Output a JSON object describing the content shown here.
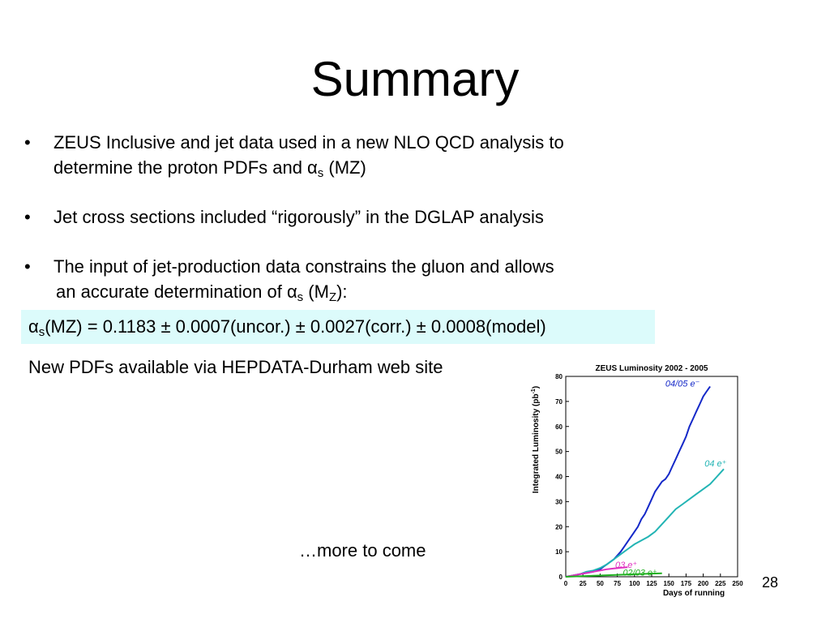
{
  "slide": {
    "title": "Summary",
    "page_number": "28",
    "bullet_glyph": "•",
    "bullets": [
      {
        "line1": "ZEUS Inclusive and jet data used in a new NLO QCD analysis to",
        "line2_prefix": "determine the proton PDFs and α",
        "line2_sub": "s",
        "line2_suffix": " (MZ)"
      },
      {
        "line1": "Jet cross sections included “rigorously” in the DGLAP analysis"
      },
      {
        "line1": "The input of jet-production data constrains the gluon and allows",
        "line2_prefix": "an accurate determination of α",
        "line2_sub": "s",
        "line2_mid": " (M",
        "line2_sub2": "Z",
        "line2_suffix": "):"
      }
    ],
    "formula": {
      "prefix": "α",
      "sub": "s",
      "rest": "(MZ) = 0.1183 ± 0.0007(uncor.) ± 0.0027(corr.) ± 0.0008(model)",
      "highlight_color": "#dcfbfb"
    },
    "pdf_note": "New PDFs available via HEPDATA-Durham web site",
    "more_note": "…more to come"
  },
  "chart_data": {
    "type": "line",
    "title": "ZEUS Luminosity 2002 - 2005",
    "xlabel": "Days of running",
    "ylabel": "Integrated Luminosity (pb",
    "ylabel_sup": "-1",
    "ylabel_close": ")",
    "xlim": [
      0,
      250
    ],
    "ylim": [
      0,
      80
    ],
    "xticks": [
      0,
      25,
      50,
      75,
      100,
      125,
      150,
      175,
      200,
      225,
      250
    ],
    "yticks": [
      0,
      10,
      20,
      30,
      40,
      50,
      60,
      70,
      80
    ],
    "grid": false,
    "series": [
      {
        "name": "04/05 e⁻",
        "color": "#1428c8",
        "label_at": [
          170,
          76
        ],
        "x": [
          0,
          10,
          20,
          30,
          40,
          45,
          50,
          55,
          60,
          65,
          70,
          75,
          80,
          85,
          90,
          95,
          100,
          105,
          110,
          115,
          120,
          125,
          130,
          135,
          140,
          145,
          150,
          155,
          160,
          165,
          170,
          175,
          180,
          185,
          190,
          195,
          200,
          205,
          210
        ],
        "y": [
          0,
          0.5,
          1,
          1.5,
          2,
          2.5,
          3,
          4,
          5,
          6,
          7,
          8.5,
          10,
          12,
          14,
          16,
          18,
          20,
          23,
          25,
          28,
          31,
          34,
          36,
          38,
          39,
          41,
          44,
          47,
          50,
          53,
          56,
          60,
          63,
          66,
          69,
          72,
          74,
          76
        ]
      },
      {
        "name": "04 e⁺",
        "color": "#22b4b4",
        "label_at": [
          218,
          44
        ],
        "x": [
          0,
          10,
          20,
          30,
          40,
          50,
          60,
          70,
          80,
          90,
          100,
          110,
          120,
          130,
          140,
          150,
          160,
          170,
          180,
          190,
          200,
          210,
          220,
          230
        ],
        "y": [
          0,
          0.5,
          1,
          2,
          2.5,
          3.5,
          5,
          7,
          9,
          11,
          13,
          14.5,
          16,
          18,
          21,
          24,
          27,
          29,
          31,
          33,
          35,
          37,
          40,
          43
        ]
      },
      {
        "name": "03 e⁺",
        "color": "#e030c0",
        "label_at": [
          88,
          3.5
        ],
        "x": [
          0,
          10,
          20,
          30,
          40,
          50,
          60,
          70,
          80,
          90
        ],
        "y": [
          0,
          0.5,
          1,
          1.5,
          2,
          2.5,
          3,
          3.3,
          3.6,
          3.8
        ]
      },
      {
        "name": "02/03 e⁺",
        "color": "#20b020",
        "label_at": [
          108,
          0.5
        ],
        "x": [
          0,
          20,
          40,
          60,
          80,
          100,
          120,
          140
        ],
        "y": [
          0,
          0.2,
          0.4,
          0.6,
          0.8,
          1.0,
          1.2,
          1.4
        ]
      }
    ]
  }
}
